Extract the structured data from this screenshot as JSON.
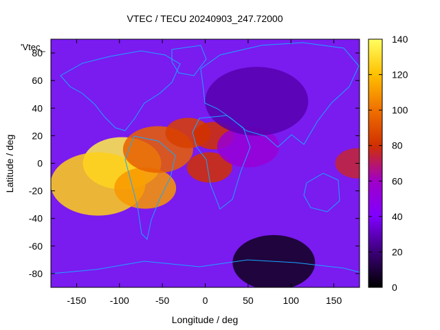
{
  "chart_data": {
    "type": "heatmap",
    "title": "VTEC / TECU 20240903_247.72000",
    "xlabel": "Longitude / deg",
    "ylabel": "Latitude / deg",
    "key_label": "'Vtec_",
    "xlim": [
      -180,
      180
    ],
    "ylim": [
      -90,
      90
    ],
    "x_ticks": [
      -150,
      -100,
      -50,
      0,
      50,
      100,
      150
    ],
    "y_ticks": [
      -80,
      -60,
      -40,
      -20,
      0,
      20,
      40,
      60,
      80
    ],
    "colorbar": {
      "range": [
        0,
        140
      ],
      "ticks": [
        0,
        20,
        40,
        60,
        80,
        100,
        120,
        140
      ],
      "palette": [
        "#000000",
        "#3c0078",
        "#8000ff",
        "#a000c8",
        "#d03000",
        "#f07000",
        "#ffc000",
        "#ffff60"
      ]
    },
    "grid": false,
    "tec_features": [
      {
        "lon": -97,
        "lat": 0,
        "vtec": 135
      },
      {
        "lon": -125,
        "lat": -15,
        "vtec": 125
      },
      {
        "lon": -70,
        "lat": -18,
        "vtec": 110
      },
      {
        "lon": -55,
        "lat": 10,
        "vtec": 95
      },
      {
        "lon": -20,
        "lat": 22,
        "vtec": 85
      },
      {
        "lon": 10,
        "lat": 20,
        "vtec": 80
      },
      {
        "lon": 5,
        "lat": -3,
        "vtec": 80
      },
      {
        "lon": 50,
        "lat": 12,
        "vtec": 55
      },
      {
        "lon": 60,
        "lat": 45,
        "vtec": 28
      },
      {
        "lon": 80,
        "lat": -72,
        "vtec": 5
      },
      {
        "lon": 178,
        "lat": 0,
        "vtec": 75
      }
    ]
  }
}
